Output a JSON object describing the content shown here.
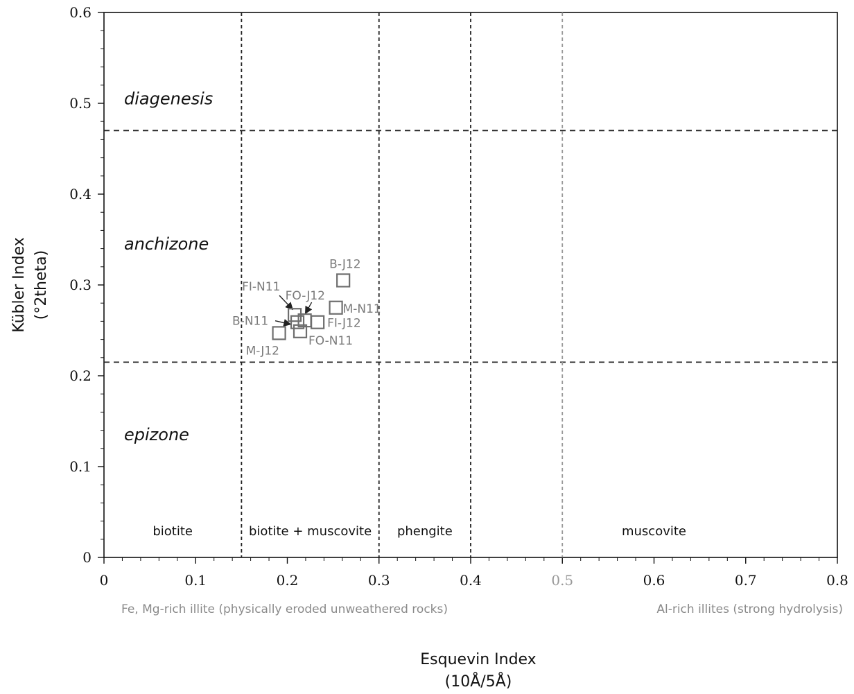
{
  "chart_data": {
    "type": "scatter",
    "xlabel_line1": "Esquevin Index",
    "xlabel_line2": "(10Å/5Å)",
    "ylabel_line1": "Kübler Index",
    "ylabel_line2": "(°2theta)",
    "xlim": [
      0,
      0.8
    ],
    "ylim": [
      0,
      0.6
    ],
    "xticks": [
      "0",
      "0.1",
      "0.2",
      "0.3",
      "0.4",
      "0.5",
      "0.6",
      "0.7",
      "0.8"
    ],
    "xtick_values": [
      0,
      0.1,
      0.2,
      0.3,
      0.4,
      0.5,
      0.6,
      0.7,
      0.8
    ],
    "yticks": [
      "0",
      "0.1",
      "0.2",
      "0.3",
      "0.4",
      "0.5",
      "0.6"
    ],
    "ytick_values": [
      0,
      0.1,
      0.2,
      0.3,
      0.4,
      0.5,
      0.6
    ],
    "grid": false,
    "horizontal_boundaries": [
      0.47,
      0.215
    ],
    "vertical_boundaries": [
      {
        "x": 0.15,
        "color": "#222222"
      },
      {
        "x": 0.3,
        "color": "#222222"
      },
      {
        "x": 0.4,
        "color": "#222222"
      },
      {
        "x": 0.5,
        "color": "#999999"
      }
    ],
    "zones": [
      {
        "label": "diagenesis",
        "y": 0.505
      },
      {
        "label": "anchizone",
        "y": 0.345
      },
      {
        "label": "epizone",
        "y": 0.135
      }
    ],
    "mineral_fields": [
      {
        "label": "biotite",
        "x": 0.075
      },
      {
        "label": "biotite + muscovite",
        "x": 0.225
      },
      {
        "label": "phengite",
        "x": 0.35
      },
      {
        "label": "muscovite",
        "x": 0.6
      }
    ],
    "x_notes": [
      {
        "label": "Fe, Mg-rich illite (physically eroded unweathered rocks)",
        "position": "left"
      },
      {
        "label": "Al-rich illites (strong hydrolysis)",
        "position": "right"
      }
    ],
    "points": [
      {
        "label": "B-J12",
        "x": 0.261,
        "y": 0.305
      },
      {
        "label": "M-N11",
        "x": 0.253,
        "y": 0.275
      },
      {
        "label": "FI-J12",
        "x": 0.233,
        "y": 0.259
      },
      {
        "label": "FO-J12",
        "x": 0.219,
        "y": 0.261
      },
      {
        "label": "FI-N11",
        "x": 0.208,
        "y": 0.267
      },
      {
        "label": "B-N11",
        "x": 0.211,
        "y": 0.259
      },
      {
        "label": "FO-N11",
        "x": 0.214,
        "y": 0.249
      },
      {
        "label": "M-J12",
        "x": 0.191,
        "y": 0.247
      }
    ],
    "colors": {
      "marker": "#6e6e6e",
      "note": "#8a8a8a",
      "boundary_dark": "#222222",
      "boundary_light": "#999999"
    }
  }
}
